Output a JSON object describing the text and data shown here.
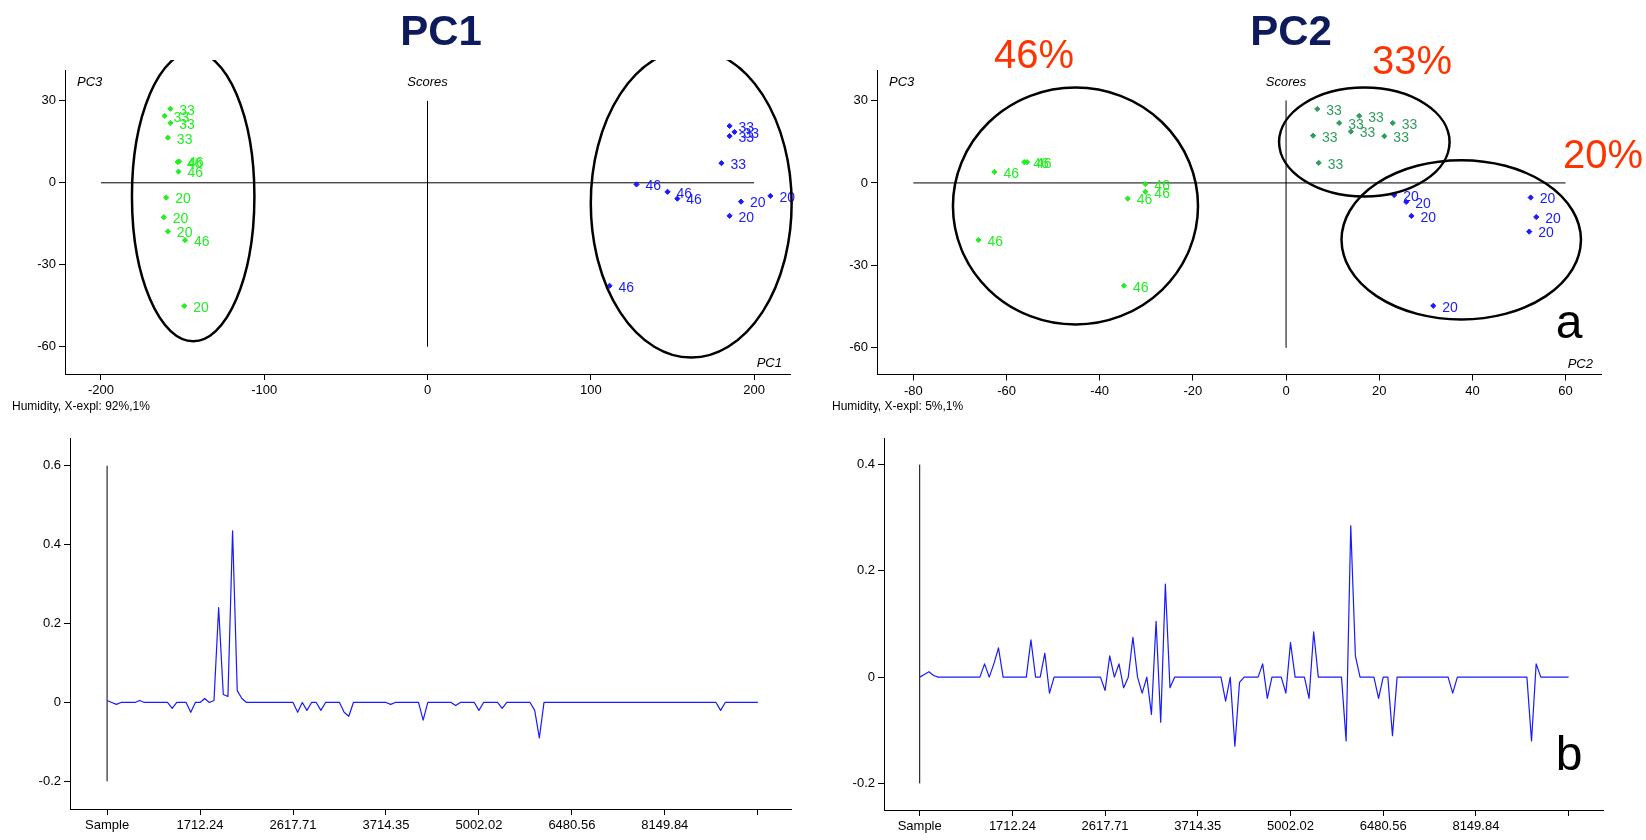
{
  "chart_data": [
    {
      "type": "scatter",
      "title": "PC1",
      "subtitle": "Scores",
      "xlabel": "PC1",
      "ylabel": "PC3",
      "marker": "diamond",
      "series": [
        {
          "name": "33",
          "color": "#22ee22",
          "x": [
            -157.5,
            -161,
            -157.5,
            -159
          ],
          "values": [
            27.1,
            24.5,
            21.9,
            16.5
          ]
        },
        {
          "name": "46",
          "color": "#22ee22",
          "x": [
            -152,
            -153,
            -152.5,
            -148.5
          ],
          "values": [
            7.8,
            7.6,
            4.1,
            -21
          ]
        },
        {
          "name": "20",
          "color": "#22ee22",
          "x": [
            -160,
            -161.5,
            -159,
            -149
          ],
          "values": [
            -5.4,
            -12.6,
            -17.8,
            -45.1
          ]
        },
        {
          "name": "33",
          "color": "#1a1aff",
          "x": [
            185,
            188,
            185,
            180
          ],
          "values": [
            20.8,
            18.6,
            17.1,
            7.2
          ]
        },
        {
          "name": "46",
          "color": "#1a1aff",
          "x": [
            128,
            147,
            153,
            111.5
          ],
          "values": [
            -0.6,
            -3.3,
            -5.8,
            -37.7
          ]
        },
        {
          "name": "20",
          "color": "#1a1aff",
          "x": [
            192,
            210,
            185
          ],
          "values": [
            -6.9,
            -4.8,
            -12.1
          ]
        }
      ],
      "xlim": [
        -222,
        222
      ],
      "xticks": [
        -200,
        -100,
        0,
        100,
        200
      ],
      "ylim": [
        -70,
        41
      ],
      "yticks": [
        -60,
        -30,
        0,
        30
      ],
      "ref_lines": [
        {
          "axis": "y",
          "value": 0
        },
        {
          "axis": "x",
          "value": 0
        }
      ],
      "annotations": [
        "Humidity, X-expl: 92%,1%"
      ]
    },
    {
      "type": "scatter",
      "title": "PC2",
      "subtitle": "Scores",
      "xlabel": "PC2",
      "ylabel": "PC3",
      "marker": "diamond",
      "series": [
        {
          "name": "46",
          "color": "#22ee22",
          "x": [
            -62.6,
            -56.2,
            -55.6,
            -66,
            -30.2,
            -30.2,
            -34,
            -34.8
          ],
          "values": [
            4,
            7.6,
            7.6,
            -20.8,
            -0.4,
            -3.2,
            -5.7,
            -37.4
          ]
        },
        {
          "name": "33",
          "color": "#2e9e5e",
          "x": [
            6.7,
            15.7,
            22.9,
            11.4,
            13.9,
            21.1,
            5.8,
            7
          ],
          "values": [
            26.9,
            24.4,
            21.8,
            21.8,
            18.7,
            17,
            17.2,
            7.3
          ]
        },
        {
          "name": "20",
          "color": "#1a1aff",
          "x": [
            23.2,
            25.8,
            26.9,
            52.5,
            53.7,
            52.2,
            31.6
          ],
          "values": [
            -4.4,
            -6.9,
            -12,
            -5.3,
            -12.4,
            -17.7,
            -44.7
          ]
        }
      ],
      "xlim": [
        -87.8,
        67.6
      ],
      "xticks": [
        -80,
        -60,
        -40,
        -20,
        0,
        20,
        40,
        60
      ],
      "ylim": [
        -69.7,
        40.8
      ],
      "yticks": [
        -60,
        -30,
        0,
        30
      ],
      "ref_lines": [
        {
          "axis": "y",
          "value": 0
        },
        {
          "axis": "x",
          "value": 0
        }
      ],
      "annotations": [
        "46%",
        "33%",
        "20%",
        "a",
        "Humidity, X-expl: 5%,1%"
      ]
    },
    {
      "type": "line",
      "marker": "none",
      "categories": [
        "Sample",
        null,
        null,
        null,
        null,
        null,
        null,
        null,
        null,
        null,
        null,
        null,
        null,
        null,
        null,
        null,
        null,
        null,
        null,
        null,
        "1712.24",
        null,
        null,
        null,
        null,
        null,
        null,
        null,
        null,
        null,
        null,
        null,
        null,
        null,
        null,
        null,
        null,
        null,
        null,
        null,
        "2617.71",
        null,
        null,
        null,
        null,
        null,
        null,
        null,
        null,
        null,
        null,
        null,
        null,
        null,
        null,
        null,
        null,
        null,
        null,
        null,
        "3714.35",
        null,
        null,
        null,
        null,
        null,
        null,
        null,
        null,
        null,
        null,
        null,
        null,
        null,
        null,
        null,
        null,
        null,
        null,
        null,
        "5002.02",
        null,
        null,
        null,
        null,
        null,
        null,
        null,
        null,
        null,
        null,
        null,
        null,
        null,
        null,
        null,
        null,
        null,
        null,
        null,
        "6480.56",
        null,
        null,
        null,
        null,
        null,
        null,
        null,
        null,
        null,
        null,
        null,
        null,
        null,
        null,
        null,
        null,
        null,
        null,
        null,
        "8149.84",
        null,
        null,
        null,
        null,
        null,
        null,
        null,
        null,
        null,
        null,
        null,
        null,
        null,
        null,
        null,
        null,
        null,
        null,
        null,
        null
      ],
      "series": [
        {
          "color": "#1a1aff",
          "values": [
            0.005,
            0,
            -0.005,
            0,
            0,
            0,
            0,
            0.005,
            0,
            0,
            0,
            0,
            0,
            0,
            -0.015,
            0,
            0,
            0,
            -0.025,
            0,
            0,
            0.01,
            0,
            0.005,
            0.24,
            0.02,
            0.015,
            0.435,
            0.03,
            0.01,
            0,
            0,
            0,
            0,
            0,
            0,
            0,
            0,
            0,
            0,
            0,
            -0.025,
            0,
            -0.02,
            0,
            0,
            -0.02,
            0,
            0,
            0,
            0,
            -0.025,
            -0.035,
            0,
            0,
            0,
            0,
            0,
            0,
            0,
            0,
            -0.005,
            0,
            0,
            0,
            0,
            0,
            0,
            -0.045,
            0,
            0,
            0,
            0,
            0,
            0,
            -0.008,
            0,
            0,
            0,
            0,
            -0.02,
            0,
            0,
            0,
            0,
            -0.015,
            0,
            0,
            0,
            0,
            0,
            0,
            -0.02,
            -0.09,
            0,
            0,
            0,
            0,
            0,
            0,
            0,
            0,
            0,
            0,
            0,
            0,
            0,
            0,
            0,
            0,
            0,
            0,
            0,
            0,
            0,
            0,
            0,
            0,
            0,
            0,
            0,
            0,
            0,
            0,
            0,
            0,
            0,
            0,
            0,
            0,
            0,
            0,
            -0.02,
            0,
            0,
            0,
            0,
            0,
            0,
            0,
            0
          ]
        }
      ],
      "ylim": [
        -0.27,
        0.67
      ],
      "yticks": [
        -0.2,
        0,
        0.2,
        0.4,
        0.6
      ],
      "ref_lines": [
        {
          "axis": "x",
          "value": "Sample"
        }
      ]
    },
    {
      "type": "line",
      "marker": "none",
      "categories": [
        "Sample",
        null,
        null,
        null,
        null,
        null,
        null,
        null,
        null,
        null,
        null,
        null,
        null,
        null,
        null,
        null,
        null,
        null,
        null,
        null,
        "1712.24",
        null,
        null,
        null,
        null,
        null,
        null,
        null,
        null,
        null,
        null,
        null,
        null,
        null,
        null,
        null,
        null,
        null,
        null,
        null,
        "2617.71",
        null,
        null,
        null,
        null,
        null,
        null,
        null,
        null,
        null,
        null,
        null,
        null,
        null,
        null,
        null,
        null,
        null,
        null,
        null,
        "3714.35",
        null,
        null,
        null,
        null,
        null,
        null,
        null,
        null,
        null,
        null,
        null,
        null,
        null,
        null,
        null,
        null,
        null,
        null,
        null,
        "5002.02",
        null,
        null,
        null,
        null,
        null,
        null,
        null,
        null,
        null,
        null,
        null,
        null,
        null,
        null,
        null,
        null,
        null,
        null,
        null,
        "6480.56",
        null,
        null,
        null,
        null,
        null,
        null,
        null,
        null,
        null,
        null,
        null,
        null,
        null,
        null,
        null,
        null,
        null,
        null,
        null,
        "8149.84",
        null,
        null,
        null,
        null,
        null,
        null,
        null,
        null,
        null,
        null,
        null,
        null,
        null,
        null,
        null,
        null,
        null,
        null,
        null,
        null
      ],
      "series": [
        {
          "color": "#1a1aff",
          "values": [
            0,
            0.005,
            0.01,
            0.003,
            0,
            0,
            0,
            0,
            0,
            0,
            0,
            0,
            0,
            0,
            0.025,
            0,
            0.025,
            0.055,
            0,
            0,
            0,
            0,
            0,
            0,
            0.07,
            0,
            0,
            0.045,
            -0.03,
            0,
            0,
            0,
            0,
            0,
            0,
            0,
            0,
            0,
            0,
            0,
            -0.025,
            0.04,
            0,
            0.025,
            -0.02,
            0,
            0.075,
            0,
            -0.03,
            0,
            -0.07,
            0.105,
            -0.085,
            0.175,
            -0.02,
            0,
            0,
            0,
            0,
            0,
            0,
            0,
            0,
            0,
            0,
            0,
            -0.045,
            0,
            -0.13,
            -0.01,
            0,
            0,
            0,
            0,
            0.025,
            -0.04,
            0,
            0,
            0,
            -0.03,
            0.065,
            0,
            0,
            0,
            -0.04,
            0.085,
            0,
            0,
            0,
            0,
            0,
            0,
            -0.12,
            0.285,
            0.04,
            0,
            0,
            0,
            0,
            -0.04,
            0,
            0,
            -0.11,
            0,
            0,
            0,
            0,
            0,
            0,
            0,
            0,
            0,
            0,
            0,
            0,
            -0.03,
            0,
            0,
            0,
            0,
            0,
            0,
            0,
            0,
            0,
            0,
            0,
            0,
            0,
            0,
            0,
            0,
            -0.12,
            0.025,
            0,
            0,
            0,
            0,
            0,
            0,
            0
          ]
        }
      ],
      "ylim": [
        -0.25,
        0.45
      ],
      "yticks": [
        -0.2,
        0,
        0.2,
        0.4
      ],
      "ref_lines": [
        {
          "axis": "x",
          "value": "Sample"
        }
      ],
      "annotations": [
        "b"
      ]
    }
  ]
}
